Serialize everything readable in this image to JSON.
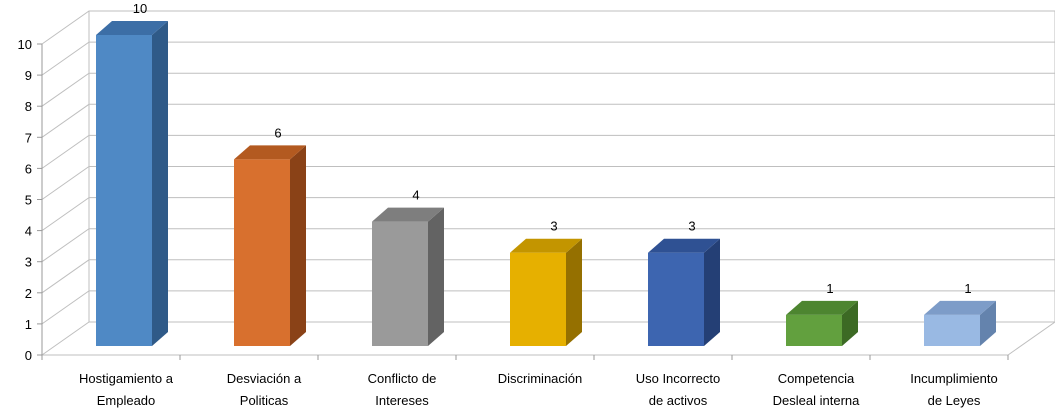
{
  "chart_data": {
    "type": "bar",
    "style": "3d-column",
    "categories": [
      [
        "Hostigamiento a",
        "Empleado"
      ],
      [
        "Desviación a",
        "Politicas"
      ],
      [
        "Conflicto de",
        "Intereses"
      ],
      [
        "Discriminación"
      ],
      [
        "Uso  Incorrecto",
        "de activos"
      ],
      [
        "Competencia",
        "Desleal interna"
      ],
      [
        "Incumplimiento",
        "de Leyes"
      ]
    ],
    "values": [
      10,
      6,
      4,
      3,
      3,
      1,
      1
    ],
    "data_labels": [
      "10",
      "6",
      "4",
      "3",
      "3",
      "1",
      "1"
    ],
    "ylim": [
      0,
      10
    ],
    "yticks": [
      0,
      1,
      2,
      3,
      4,
      5,
      6,
      7,
      8,
      9,
      10
    ],
    "grid": true,
    "legend": "none",
    "colors": [
      {
        "front": "#4f89c5",
        "side": "#2f5a88",
        "top": "#3c6ea6"
      },
      {
        "front": "#d8702e",
        "side": "#8a4217",
        "top": "#b35a20"
      },
      {
        "front": "#9a9a9a",
        "side": "#636363",
        "top": "#7e7e7e"
      },
      {
        "front": "#e6b000",
        "side": "#957000",
        "top": "#c39500"
      },
      {
        "front": "#3d65b0",
        "side": "#243f75",
        "top": "#2f5193"
      },
      {
        "front": "#62a03e",
        "side": "#3c6a24",
        "top": "#4d8530"
      },
      {
        "front": "#99b9e3",
        "side": "#6483ad",
        "top": "#7d9cc8"
      }
    ]
  }
}
